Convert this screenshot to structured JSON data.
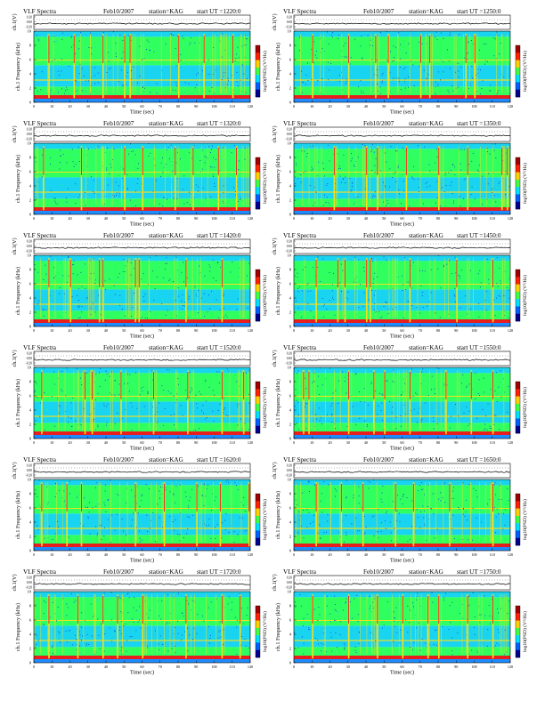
{
  "figure": {
    "type": "VLF spectrogram grid",
    "columns": 2,
    "rows": 6
  },
  "colors": {
    "background_cyan": "#19d4f0",
    "low_band_blue": "#1e8cff",
    "mid_green": "#30ff60",
    "speckle_blue": "#0a3ccc",
    "warm_yellow": "#f0e020",
    "hot_red": "#e81e1e",
    "colorbar": [
      "#a00000",
      "#ff2000",
      "#ffd000",
      "#40ff40",
      "#00e0ff",
      "#0060ff",
      "#000090"
    ]
  },
  "chart_data": [
    {
      "panel": 1,
      "type": "heatmap",
      "title_left": "VLF Spectra",
      "date": "Feb10/2007",
      "station": "station=KAG",
      "start": "start  UT  =1220:0",
      "ylabel_top": "ch.1(V)",
      "ylabel_top_ticks": [
        "0.20",
        "0.00",
        "-0.20"
      ],
      "ylabel_main": "ch.1 Frequency  (kHz)",
      "yticks": [
        "10",
        "8",
        "6",
        "4",
        "2",
        "0"
      ],
      "ylim": [
        0,
        10
      ],
      "xlabel": "Time  (sec)",
      "xticks": [
        "0",
        "10",
        "20",
        "30",
        "40",
        "50",
        "60",
        "70",
        "80",
        "90",
        "100",
        "110",
        "120"
      ],
      "xlim": [
        0,
        120
      ],
      "colorbar_label": "log10(PSD) (V²/Hz)",
      "bright_spikes_sec": [
        8,
        22,
        38,
        50,
        53,
        80,
        94,
        110
      ]
    },
    {
      "panel": 2,
      "type": "heatmap",
      "title_left": "VLF Spectra",
      "date": "Feb10/2007",
      "station": "station=KAG",
      "start": "start  UT  =1250:0",
      "ylabel_top": "ch.1(V)",
      "ylabel_top_ticks": [
        "0.20",
        "0.00",
        "-0.20"
      ],
      "ylabel_main": "ch.1 Frequency  (kHz)",
      "yticks": [
        "10",
        "8",
        "6",
        "4",
        "2",
        "0"
      ],
      "ylim": [
        0,
        10
      ],
      "xlabel": "Time  (sec)",
      "xticks": [
        "0",
        "10",
        "20",
        "30",
        "40",
        "50",
        "60",
        "70",
        "80",
        "90",
        "100",
        "110",
        "120"
      ],
      "xlim": [
        0,
        120
      ],
      "colorbar_label": "log10(PSD) (V²/Hz)",
      "bright_spikes_sec": [
        10,
        30,
        45,
        52,
        70,
        75,
        95,
        100
      ]
    },
    {
      "panel": 3,
      "type": "heatmap",
      "title_left": "VLF Spectra",
      "date": "Feb10/2007",
      "station": "station=KAG",
      "start": "start  UT  =1320:0",
      "ylabel_top": "ch.1(V)",
      "ylabel_top_ticks": [
        "0.20",
        "0.00",
        "-0.20"
      ],
      "ylabel_main": "ch.1 Frequency  (kHz)",
      "yticks": [
        "10",
        "8",
        "6",
        "4",
        "2",
        "0"
      ],
      "ylim": [
        0,
        10
      ],
      "xlabel": "Time  (sec)",
      "xticks": [
        "0",
        "10",
        "20",
        "30",
        "40",
        "50",
        "60",
        "70",
        "80",
        "90",
        "100",
        "110",
        "120"
      ],
      "xlim": [
        0,
        120
      ],
      "colorbar_label": "log10(PSD) (V²/Hz)",
      "bright_spikes_sec": [
        5,
        26,
        50,
        60,
        78,
        88,
        102,
        112
      ]
    },
    {
      "panel": 4,
      "type": "heatmap",
      "title_left": "VLF Spectra",
      "date": "Feb10/2007",
      "station": "station=KAG",
      "start": "start  UT  =1350:0",
      "ylabel_top": "ch.1(V)",
      "ylabel_top_ticks": [
        "0.20",
        "0.00",
        "-0.20"
      ],
      "ylabel_main": "ch.1 Frequency  (kHz)",
      "yticks": [
        "10",
        "8",
        "6",
        "4",
        "2",
        "0"
      ],
      "ylim": [
        0,
        10
      ],
      "xlabel": "Time  (sec)",
      "xticks": [
        "0",
        "10",
        "20",
        "30",
        "40",
        "50",
        "60",
        "70",
        "80",
        "90",
        "100",
        "110",
        "120"
      ],
      "xlim": [
        0,
        120
      ],
      "colorbar_label": "log10(PSD) (V²/Hz)",
      "bright_spikes_sec": [
        22,
        40,
        46,
        62,
        80,
        96,
        115,
        118
      ]
    },
    {
      "panel": 5,
      "type": "heatmap",
      "title_left": "VLF Spectra",
      "date": "Feb10/2007",
      "station": "station=KAG",
      "start": "start  UT  =1420:0",
      "ylabel_top": "ch.1(V)",
      "ylabel_top_ticks": [
        "0.20",
        "0.00",
        "-0.20"
      ],
      "ylabel_main": "ch.1 Frequency  (kHz)",
      "yticks": [
        "10",
        "8",
        "6",
        "4",
        "2",
        "0"
      ],
      "ylim": [
        0,
        10
      ],
      "xlabel": "Time  (sec)",
      "xticks": [
        "0",
        "10",
        "20",
        "30",
        "40",
        "50",
        "60",
        "70",
        "80",
        "90",
        "100",
        "110",
        "120"
      ],
      "xlim": [
        0,
        120
      ],
      "colorbar_label": "log10(PSD) (V²/Hz)",
      "bright_spikes_sec": [
        8,
        20,
        36,
        38,
        56,
        58,
        84,
        104
      ]
    },
    {
      "panel": 6,
      "type": "heatmap",
      "title_left": "VLF Spectra",
      "date": "Feb10/2007",
      "station": "station=KAG",
      "start": "start  UT  =1450:0",
      "ylabel_top": "ch.1(V)",
      "ylabel_top_ticks": [
        "0.20",
        "0.00",
        "-0.20"
      ],
      "ylabel_main": "ch.1 Frequency  (kHz)",
      "yticks": [
        "10",
        "8",
        "6",
        "4",
        "2",
        "0"
      ],
      "ylim": [
        0,
        10
      ],
      "xlabel": "Time  (sec)",
      "xticks": [
        "0",
        "10",
        "20",
        "30",
        "40",
        "50",
        "60",
        "70",
        "80",
        "90",
        "100",
        "110",
        "120"
      ],
      "xlim": [
        0,
        120
      ],
      "colorbar_label": "log10(PSD) (V²/Hz)",
      "bright_spikes_sec": [
        12,
        24,
        28,
        40,
        42,
        64,
        90,
        110
      ]
    },
    {
      "panel": 7,
      "type": "heatmap",
      "title_left": "VLF Spectra",
      "date": "Feb10/2007",
      "station": "station=KAG",
      "start": "start  UT  =1520:0",
      "ylabel_top": "ch.1(V)",
      "ylabel_top_ticks": [
        "0.20",
        "0.00",
        "-0.20"
      ],
      "ylabel_main": "ch.1 Frequency  (kHz)",
      "yticks": [
        "10",
        "8",
        "6",
        "4",
        "2",
        "0"
      ],
      "ylim": [
        0,
        10
      ],
      "xlabel": "Time  (sec)",
      "xticks": [
        "0",
        "10",
        "20",
        "30",
        "40",
        "50",
        "60",
        "70",
        "80",
        "90",
        "100",
        "110",
        "120"
      ],
      "xlim": [
        0,
        120
      ],
      "colorbar_label": "log10(PSD) (V²/Hz)",
      "bright_spikes_sec": [
        4,
        28,
        32,
        48,
        66,
        85,
        104,
        116
      ]
    },
    {
      "panel": 8,
      "type": "heatmap",
      "title_left": "VLF Spectra",
      "date": "Feb10/2007",
      "station": "station=KAG",
      "start": "start  UT  =1550:0",
      "ylabel_top": "ch.1(V)",
      "ylabel_top_ticks": [
        "0.20",
        "0.00",
        "-0.20"
      ],
      "ylabel_main": "ch.1 Frequency  (kHz)",
      "yticks": [
        "10",
        "8",
        "6",
        "4",
        "2",
        "0"
      ],
      "ylim": [
        0,
        10
      ],
      "xlabel": "Time  (sec)",
      "xticks": [
        "0",
        "10",
        "20",
        "30",
        "40",
        "50",
        "60",
        "70",
        "80",
        "90",
        "100",
        "110",
        "120"
      ],
      "xlim": [
        0,
        120
      ],
      "colorbar_label": "log10(PSD) (V²/Hz)",
      "bright_spikes_sec": [
        5,
        8,
        30,
        44,
        50,
        64,
        84,
        98,
        110
      ]
    },
    {
      "panel": 9,
      "type": "heatmap",
      "title_left": "VLF Spectra",
      "date": "Feb10/2007",
      "station": "station=KAG",
      "start": "start  UT  =1620:0",
      "ylabel_top": "ch.1(V)",
      "ylabel_top_ticks": [
        "0.20",
        "0.00",
        "-0.20"
      ],
      "ylabel_main": "ch.1 Frequency  (kHz)",
      "yticks": [
        "10",
        "8",
        "6",
        "4",
        "2",
        "0"
      ],
      "ylim": [
        0,
        10
      ],
      "xlabel": "Time  (sec)",
      "xticks": [
        "0",
        "10",
        "20",
        "30",
        "40",
        "50",
        "60",
        "70",
        "80",
        "90",
        "100",
        "110",
        "120"
      ],
      "xlim": [
        0,
        120
      ],
      "colorbar_label": "log10(PSD) (V²/Hz)",
      "bright_spikes_sec": [
        4,
        18,
        26,
        56,
        72,
        90,
        103,
        119
      ]
    },
    {
      "panel": 10,
      "type": "heatmap",
      "title_left": "VLF Spectra",
      "date": "Feb10/2007",
      "station": "station=KAG",
      "start": "start  UT  =1650:0",
      "ylabel_top": "ch.1(V)",
      "ylabel_top_ticks": [
        "0.20",
        "0.00",
        "-0.20"
      ],
      "ylabel_main": "ch.1 Frequency  (kHz)",
      "yticks": [
        "10",
        "8",
        "6",
        "4",
        "2",
        "0"
      ],
      "ylim": [
        0,
        10
      ],
      "xlabel": "Time  (sec)",
      "xticks": [
        "0",
        "10",
        "20",
        "30",
        "40",
        "50",
        "60",
        "70",
        "80",
        "90",
        "100",
        "110",
        "120"
      ],
      "xlim": [
        0,
        120
      ],
      "colorbar_label": "log10(PSD) (V²/Hz)",
      "bright_spikes_sec": [
        12,
        26,
        38,
        56,
        66,
        86,
        110
      ]
    },
    {
      "panel": 11,
      "type": "heatmap",
      "title_left": "VLF Spectra",
      "date": "Feb10/2007",
      "station": "station=KAG",
      "start": "start  UT  =1720:0",
      "ylabel_top": "ch.1(V)",
      "ylabel_top_ticks": [
        "0.20",
        "0.00",
        "-0.20"
      ],
      "ylabel_main": "ch.1 Frequency  (kHz)",
      "yticks": [
        "10",
        "8",
        "6",
        "4",
        "2",
        "0"
      ],
      "ylim": [
        0,
        10
      ],
      "xlabel": "Time  (sec)",
      "xticks": [
        "0",
        "10",
        "20",
        "30",
        "40",
        "50",
        "60",
        "70",
        "80",
        "90",
        "100",
        "110",
        "120"
      ],
      "xlim": [
        0,
        120
      ],
      "colorbar_label": "log10(PSD) (V²/Hz)",
      "bright_spikes_sec": [
        8,
        24,
        38,
        46,
        60,
        84,
        104,
        114
      ]
    },
    {
      "panel": 12,
      "type": "heatmap",
      "title_left": "VLF Spectra",
      "date": "Feb10/2007",
      "station": "station=KAG",
      "start": "start  UT  =1750:0",
      "ylabel_top": "ch.1(V)",
      "ylabel_top_ticks": [
        "0.20",
        "0.00",
        "-0.20"
      ],
      "ylabel_main": "ch.1 Frequency  (kHz)",
      "yticks": [
        "10",
        "8",
        "6",
        "4",
        "2",
        "0"
      ],
      "ylim": [
        0,
        10
      ],
      "xlabel": "Time  (sec)",
      "xticks": [
        "0",
        "10",
        "20",
        "30",
        "40",
        "50",
        "60",
        "70",
        "80",
        "90",
        "100",
        "110",
        "120"
      ],
      "xlim": [
        0,
        120
      ],
      "colorbar_label": "log10(PSD) (V²/Hz)",
      "bright_spikes_sec": [
        10,
        30,
        46,
        60,
        74,
        80,
        96,
        110
      ]
    }
  ]
}
